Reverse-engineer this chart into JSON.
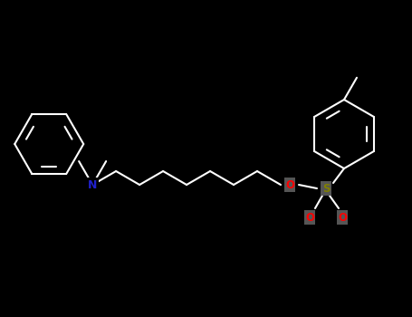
{
  "bg_color": "#000000",
  "N_color": "#2020CC",
  "O_color": "#FF0000",
  "S_color": "#808000",
  "white": "#FFFFFF",
  "line_width": 1.5,
  "figsize": [
    4.55,
    3.5
  ],
  "dpi": 100,
  "xlim": [
    0,
    455
  ],
  "ylim": [
    0,
    350
  ]
}
